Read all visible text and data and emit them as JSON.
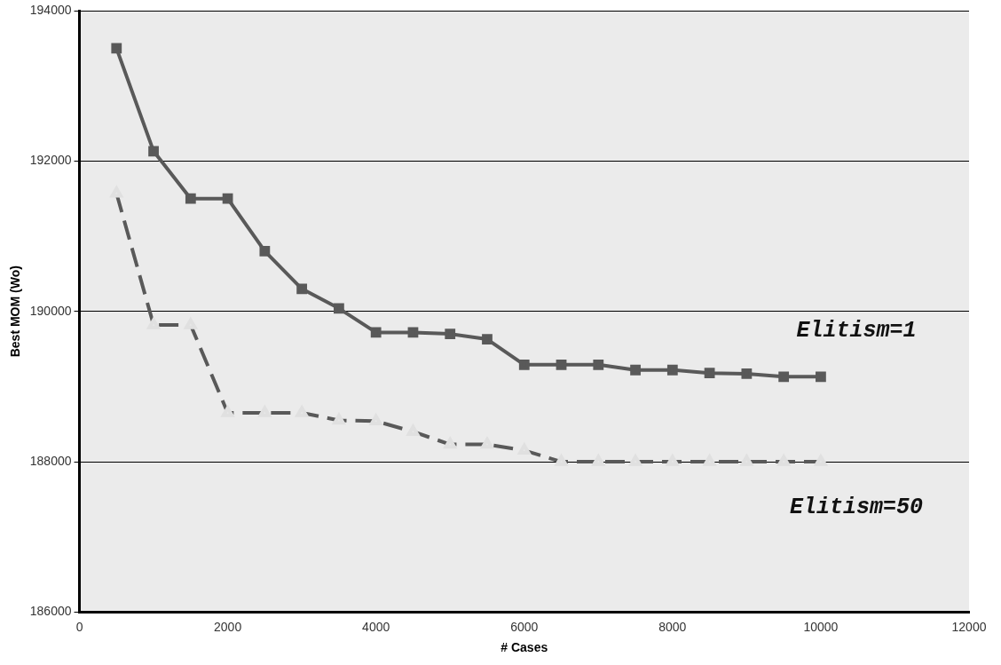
{
  "chart_data": {
    "type": "line",
    "xlabel": "# Cases",
    "ylabel": "Best MOM (Wo)",
    "x": [
      500,
      1000,
      1500,
      2000,
      2500,
      3000,
      3500,
      4000,
      4500,
      5000,
      5500,
      6000,
      6500,
      7000,
      7500,
      8000,
      8500,
      9000,
      9500,
      10000
    ],
    "series": [
      {
        "name": "Elitism=1",
        "color": "#595959",
        "marker": "square",
        "line_style": "solid",
        "values": [
          193500,
          192130,
          191500,
          191500,
          190800,
          190300,
          190040,
          189720,
          189720,
          189700,
          189630,
          189290,
          189290,
          189290,
          189220,
          189220,
          189180,
          189170,
          189130,
          189130
        ]
      },
      {
        "name": "Elitism=50",
        "color": "#595959",
        "marker": "triangle",
        "line_style": "dashed",
        "values": [
          191570,
          189820,
          189820,
          188650,
          188650,
          188650,
          188550,
          188540,
          188400,
          188230,
          188230,
          188150,
          188000,
          188000,
          188000,
          188000,
          188000,
          188000,
          188000,
          188000
        ]
      }
    ],
    "xlim": [
      0,
      12000
    ],
    "xticks": [
      0,
      2000,
      4000,
      6000,
      8000,
      10000,
      12000
    ],
    "ylim": [
      186000,
      194000
    ],
    "yticks": [
      186000,
      188000,
      190000,
      192000,
      194000
    ],
    "grid": "y",
    "legend": false
  }
}
